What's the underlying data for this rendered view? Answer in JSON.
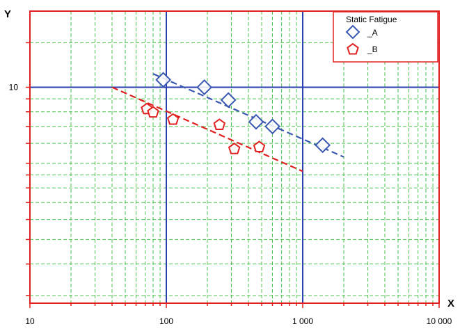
{
  "chart_data": {
    "type": "scatter",
    "title": "",
    "xlabel": "X",
    "ylabel": "Y",
    "x_scale": "log",
    "y_scale": "log",
    "xlim": [
      10,
      10000
    ],
    "ylim": [
      1.4,
      20
    ],
    "grid": true,
    "x_ticks": [
      {
        "value": 10,
        "label": "10"
      },
      {
        "value": 100,
        "label": "100"
      },
      {
        "value": 1000,
        "label": "1 000"
      },
      {
        "value": 10000,
        "label": "10 000"
      }
    ],
    "y_ticks": [
      {
        "value": 10,
        "label": "10"
      }
    ],
    "legend": {
      "title": "Static Fatigue",
      "position": "top-right"
    },
    "series": [
      {
        "name": "_A",
        "marker": "diamond",
        "color": "#3a58b0",
        "points": [
          {
            "x": 95,
            "y": 10.7
          },
          {
            "x": 190,
            "y": 10.0
          },
          {
            "x": 285,
            "y": 8.9
          },
          {
            "x": 455,
            "y": 7.3
          },
          {
            "x": 600,
            "y": 7.0
          },
          {
            "x": 1400,
            "y": 5.9
          }
        ],
        "trend": {
          "from": [
            80,
            11.3
          ],
          "to": [
            2000,
            5.3
          ]
        }
      },
      {
        "name": "_B",
        "marker": "pentagon",
        "color": "#e02020",
        "points": [
          {
            "x": 72,
            "y": 8.2
          },
          {
            "x": 80,
            "y": 7.95
          },
          {
            "x": 112,
            "y": 7.45
          },
          {
            "x": 245,
            "y": 7.1
          },
          {
            "x": 315,
            "y": 5.7
          },
          {
            "x": 480,
            "y": 5.8
          }
        ],
        "trend": {
          "from": [
            40,
            10.0
          ],
          "to": [
            1000,
            4.65
          ]
        }
      }
    ],
    "colors": {
      "frame": "#e02020",
      "minor_grid": "#4ec24e",
      "major_grid": "#2a3fb0",
      "background": "#ffffff"
    }
  }
}
